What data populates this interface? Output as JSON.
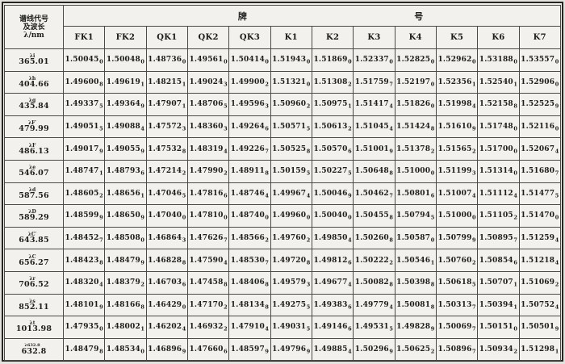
{
  "colors": {
    "paper": "#f2f1ed",
    "ink": "#1c1c1a",
    "grid_line": "#4c4a45"
  },
  "table": {
    "corner_header": {
      "line1": "谱线代号",
      "line2": "及波长",
      "line3": "λ/nm"
    },
    "group_header": {
      "char1": "牌",
      "char2": "号"
    },
    "columns": [
      "FK1",
      "FK2",
      "QK1",
      "QK2",
      "QK3",
      "K1",
      "K2",
      "K3",
      "K4",
      "K5",
      "K6",
      "K7"
    ],
    "rows": [
      {
        "mark": "λi",
        "wavelength": "365.01",
        "values": [
          "1.50045_0",
          "1.50048_0",
          "1.48736_0",
          "1.49561_0",
          "1.50414_0",
          "1.51943_0",
          "1.51869_0",
          "1.52337_0",
          "1.52825_0",
          "1.52962_0",
          "1.53188_0",
          "1.53557_0"
        ]
      },
      {
        "mark": "λh",
        "wavelength": "404.66",
        "values": [
          "1.49600_8",
          "1.49619_1",
          "1.48215_1",
          "1.49024_3",
          "1.49900_2",
          "1.51321_0",
          "1.51308_2",
          "1.51759_7",
          "1.52197_0",
          "1.52356_1",
          "1.52540_1",
          "1.52906_0"
        ]
      },
      {
        "mark": "λg",
        "wavelength": "435.84",
        "values": [
          "1.49337_5",
          "1.49364_9",
          "1.47907_1",
          "1.48706_5",
          "1.49596_3",
          "1.50960_2",
          "1.50975_1",
          "1.51417_4",
          "1.51826_0",
          "1.51998_4",
          "1.52158_8",
          "1.52525_9"
        ]
      },
      {
        "mark": "λF′",
        "wavelength": "479.99",
        "values": [
          "1.49051_5",
          "1.49088_4",
          "1.47572_3",
          "1.48360_3",
          "1.49264_6",
          "1.50571_5",
          "1.50613_2",
          "1.51045_4",
          "1.51424_8",
          "1.51610_9",
          "1.51748_0",
          "1.52116_0"
        ]
      },
      {
        "mark": "λF",
        "wavelength": "486.13",
        "values": [
          "1.49017_9",
          "1.49055_9",
          "1.47532_8",
          "1.48319_4",
          "1.49226_7",
          "1.50525_8",
          "1.50570_6",
          "1.51001_9",
          "1.51378_2",
          "1.51565_2",
          "1.51700_0",
          "1.52067_4"
        ]
      },
      {
        "mark": "λe",
        "wavelength": "546.07",
        "values": [
          "1.48747_1",
          "1.48793_6",
          "1.47214_2",
          "1.47990_2",
          "1.48911_8",
          "1.50159_5",
          "1.50227_5",
          "1.50648_8",
          "1.51000_0",
          "1.51199_3",
          "1.51314_0",
          "1.51680_7"
        ]
      },
      {
        "mark": "λd",
        "wavelength": "587.56",
        "values": [
          "1.48605_2",
          "1.48656_1",
          "1.47046_5",
          "1.47816_6",
          "1.48746_4",
          "1.49967_4",
          "1.50046_9",
          "1.50462_7",
          "1.50801_6",
          "1.51007_4",
          "1.51112_4",
          "1.51477_5"
        ]
      },
      {
        "mark": "λD",
        "wavelength": "589.29",
        "values": [
          "1.48599_9",
          "1.48650_9",
          "1.47040_0",
          "1.47810_0",
          "1.48740_0",
          "1.49960_0",
          "1.50040_0",
          "1.50455_8",
          "1.50794_5",
          "1.51000_0",
          "1.51105_2",
          "1.51470_0"
        ]
      },
      {
        "mark": "λC′",
        "wavelength": "643.85",
        "values": [
          "1.48452_7",
          "1.48508_0",
          "1.46864_3",
          "1.47626_7",
          "1.48566_2",
          "1.49760_2",
          "1.49850_4",
          "1.50260_8",
          "1.50587_0",
          "1.50799_9",
          "1.50895_7",
          "1.51259_4"
        ]
      },
      {
        "mark": "λC",
        "wavelength": "656.27",
        "values": [
          "1.48423_8",
          "1.48479_9",
          "1.46828_8",
          "1.47590_4",
          "1.48530_7",
          "1.49720_8",
          "1.49812_6",
          "1.50222_2",
          "1.50546_1",
          "1.50760_2",
          "1.50854_6",
          "1.51218_4"
        ]
      },
      {
        "mark": "λr",
        "wavelength": "706.52",
        "values": [
          "1.48320_4",
          "1.48379_2",
          "1.46703_6",
          "1.47458_8",
          "1.48406_8",
          "1.49579_3",
          "1.49677_4",
          "1.50082_8",
          "1.50398_8",
          "1.50618_5",
          "1.50707_1",
          "1.51069_2"
        ]
      },
      {
        "mark": "λs",
        "wavelength": "852.11",
        "values": [
          "1.48101_9",
          "1.48166_8",
          "1.46429_0",
          "1.47170_2",
          "1.48134_8",
          "1.49275_5",
          "1.49383_6",
          "1.49779_4",
          "1.50081_8",
          "1.50313_7",
          "1.50394_1",
          "1.50752_4"
        ]
      },
      {
        "mark": "λt",
        "wavelength": "1013.98",
        "values": [
          "1.47935_0",
          "1.48002_1",
          "1.46202_4",
          "1.46932_2",
          "1.47910_4",
          "1.49031_5",
          "1.49146_6",
          "1.49531_5",
          "1.49828_9",
          "1.50069_7",
          "1.50151_0",
          "1.50501_9"
        ]
      },
      {
        "mark": "λ632.8",
        "wavelength": "632.8",
        "values": [
          "1.48479_8",
          "1.48534_0",
          "1.46896_9",
          "1.47660_6",
          "1.48597_9",
          "1.49796_9",
          "1.49885_4",
          "1.50296_9",
          "1.50625_2",
          "1.50896_7",
          "1.50934_2",
          "1.51298_1"
        ]
      }
    ]
  }
}
